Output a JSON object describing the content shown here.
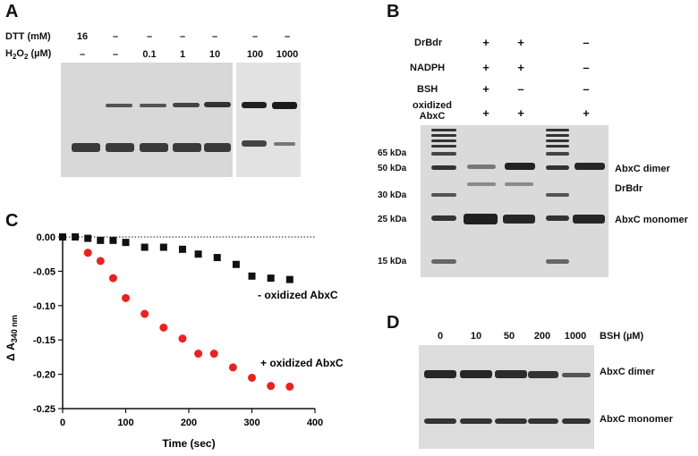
{
  "panels": {
    "a": {
      "letter": "A",
      "rows": [
        {
          "label": "DTT (mM)",
          "values": [
            "16",
            "–",
            "–",
            "–",
            "–",
            "–",
            "–"
          ]
        },
        {
          "label_main": "H",
          "label_sub": "2",
          "label_mid": "O",
          "label_sub2": "2",
          "label_tail": " (µM)",
          "values": [
            "–",
            "–",
            "0.1",
            "1",
            "10",
            "100",
            "1000"
          ]
        }
      ]
    },
    "b": {
      "letter": "B",
      "conditions": [
        {
          "label": "DrBdr",
          "values": [
            "+",
            "+",
            "–"
          ]
        },
        {
          "label": "NADPH",
          "values": [
            "+",
            "+",
            "–"
          ]
        },
        {
          "label": "BSH",
          "values": [
            "+",
            "–",
            "–"
          ]
        },
        {
          "label": "oxidized\nAbxC",
          "values": [
            "+",
            "+",
            "+"
          ]
        }
      ],
      "markers": [
        "65 kDa",
        "50 kDa",
        "30 kDa",
        "25 kDa",
        "15 kDa"
      ],
      "band_labels": [
        "AbxC dimer",
        "DrBdr",
        "AbxC monomer"
      ]
    },
    "c": {
      "letter": "C",
      "series_labels": [
        "- oxidized AbxC",
        "+ oxidized AbxC"
      ]
    },
    "d": {
      "letter": "D",
      "header": "BSH (µM)",
      "concentrations": [
        "0",
        "10",
        "50",
        "200",
        "1000"
      ],
      "band_labels": [
        "AbxC dimer",
        "AbxC monomer"
      ]
    }
  },
  "chart_data": {
    "type": "scatter",
    "title": "",
    "xlabel": "Time (sec)",
    "ylabel": "Δ A340 nm",
    "xlim": [
      0,
      400
    ],
    "ylim": [
      -0.25,
      0.0
    ],
    "xticks": [
      0,
      100,
      200,
      300,
      400
    ],
    "yticks": [
      0.0,
      -0.05,
      -0.1,
      -0.15,
      -0.2,
      -0.25
    ],
    "ytick_labels": [
      "0.00",
      "-0.05",
      "-0.10",
      "-0.15",
      "-0.20",
      "-0.25"
    ],
    "baseline": 0.0,
    "series": [
      {
        "name": "- oxidized AbxC",
        "color": "#111111",
        "marker": "square",
        "x": [
          0,
          20,
          40,
          60,
          80,
          100,
          130,
          160,
          190,
          215,
          245,
          275,
          300,
          330,
          360
        ],
        "y": [
          0.0,
          0.0,
          -0.002,
          -0.005,
          -0.005,
          -0.008,
          -0.015,
          -0.015,
          -0.018,
          -0.025,
          -0.03,
          -0.04,
          -0.057,
          -0.06,
          -0.062
        ]
      },
      {
        "name": "+ oxidized AbxC",
        "color": "#e8231f",
        "marker": "circle",
        "x": [
          40,
          60,
          80,
          100,
          130,
          160,
          190,
          215,
          240,
          270,
          300,
          330,
          360
        ],
        "y": [
          -0.023,
          -0.035,
          -0.06,
          -0.089,
          -0.112,
          -0.132,
          -0.148,
          -0.17,
          -0.17,
          -0.19,
          -0.205,
          -0.217,
          -0.218
        ]
      }
    ]
  },
  "colors": {
    "gel_bg": "#dcdcdc",
    "band_dark": "#2a2a2a",
    "red": "#e8231f"
  }
}
